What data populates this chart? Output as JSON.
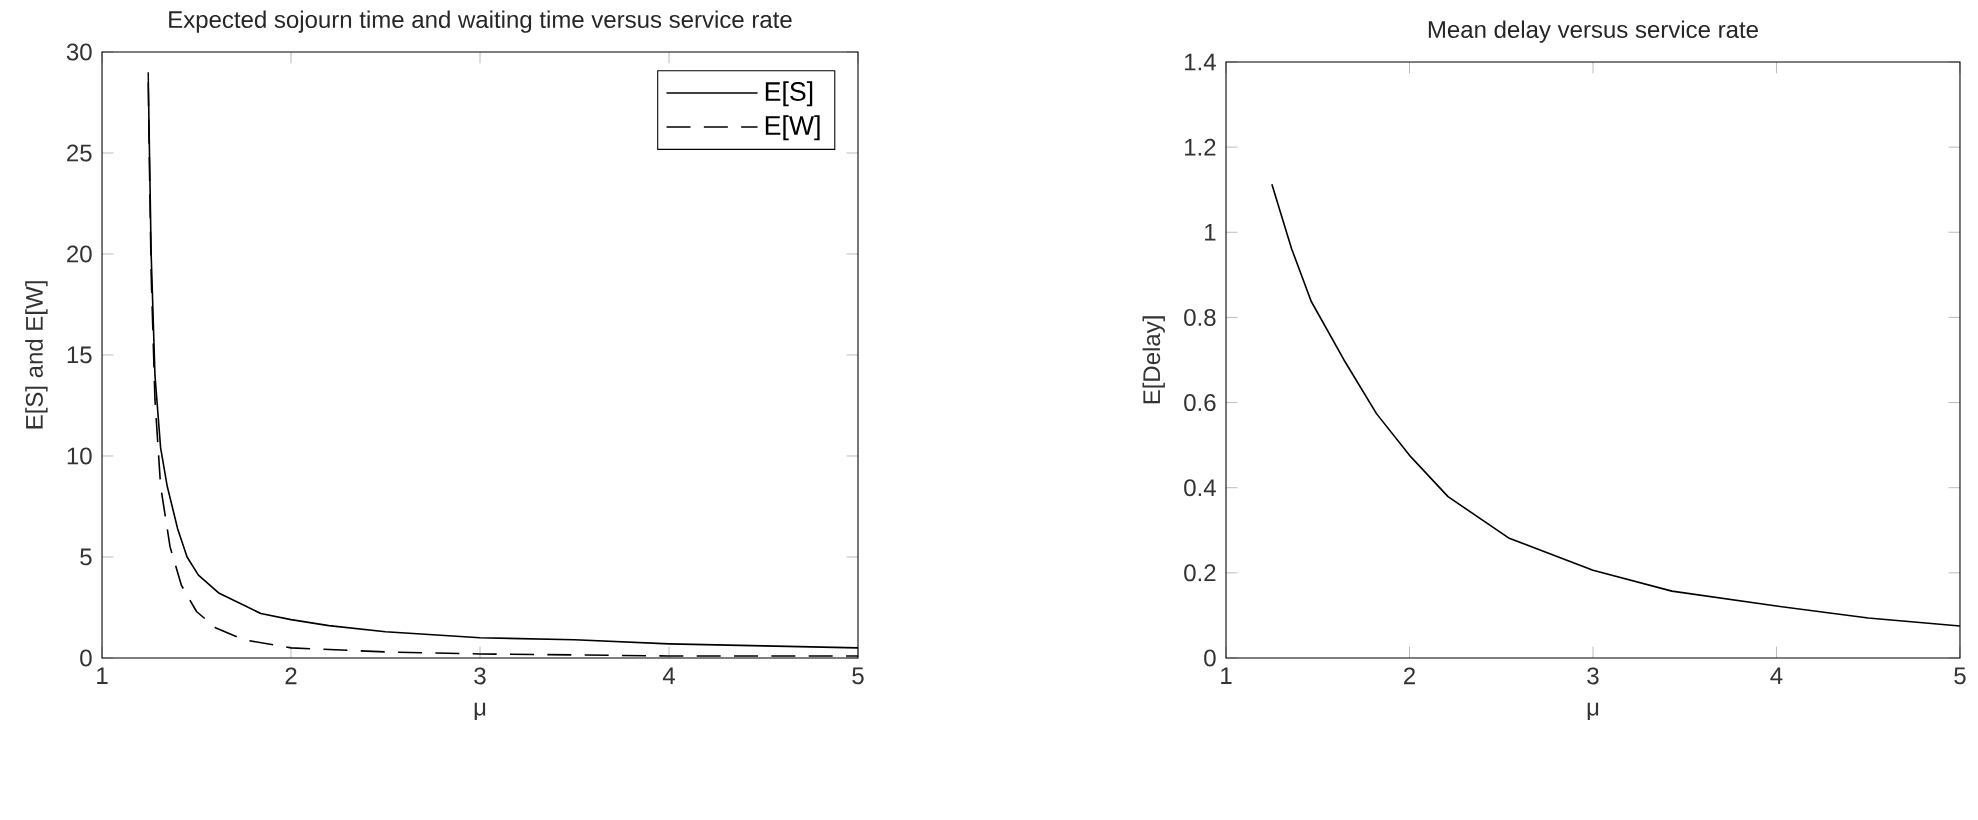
{
  "chart_data": [
    {
      "type": "line",
      "title": "Expected sojourn time and waiting time versus service rate",
      "xlabel": "μ",
      "ylabel": "E[S] and E[W]",
      "xlim": [
        1,
        5
      ],
      "ylim": [
        0,
        30
      ],
      "xticks": [
        1,
        2,
        3,
        4,
        5
      ],
      "yticks": [
        0,
        5,
        10,
        15,
        20,
        25,
        30
      ],
      "legend": "top right",
      "grid": false,
      "series": [
        {
          "name": "E[S]",
          "color": "#000000",
          "line_style": "solid",
          "x": [
            1.244,
            1.26,
            1.28,
            1.31,
            1.345,
            1.4,
            1.45,
            1.51,
            1.62,
            1.84,
            2.0,
            2.2,
            2.5,
            3.0,
            3.5,
            4.0,
            4.5,
            5.0
          ],
          "values": [
            29,
            20,
            14,
            10.4,
            8.5,
            6.4,
            5.0,
            4.1,
            3.2,
            2.2,
            1.9,
            1.6,
            1.3,
            1.0,
            0.9,
            0.7,
            0.6,
            0.5
          ]
        },
        {
          "name": "E[W]",
          "color": "#000000",
          "line_style": "dashed",
          "x": [
            1.244,
            1.26,
            1.28,
            1.31,
            1.36,
            1.42,
            1.5,
            1.6,
            1.75,
            2.0,
            2.5,
            3.0,
            4.0,
            5.0
          ],
          "values": [
            28.5,
            19,
            12.8,
            8.5,
            5.5,
            3.6,
            2.3,
            1.5,
            0.9,
            0.5,
            0.3,
            0.2,
            0.1,
            0.1
          ]
        }
      ]
    },
    {
      "type": "line",
      "title": "Mean delay versus service rate",
      "xlabel": "μ",
      "ylabel": "E[Delay]",
      "xlim": [
        1,
        5
      ],
      "ylim": [
        0,
        1.4
      ],
      "xticks": [
        1,
        2,
        3,
        4,
        5
      ],
      "yticks": [
        0,
        0.2,
        0.4,
        0.6,
        0.8,
        1,
        1.2,
        1.4
      ],
      "legend": false,
      "grid": false,
      "series": [
        {
          "color": "#000000",
          "line_style": "solid",
          "x": [
            1.25,
            1.357,
            1.464,
            1.643,
            1.82,
            2.0,
            2.21,
            2.54,
            3.0,
            3.43,
            4.0,
            4.5,
            5.0
          ],
          "values": [
            1.113,
            0.962,
            0.838,
            0.7,
            0.574,
            0.476,
            0.379,
            0.282,
            0.206,
            0.157,
            0.122,
            0.094,
            0.075
          ]
        }
      ]
    }
  ]
}
